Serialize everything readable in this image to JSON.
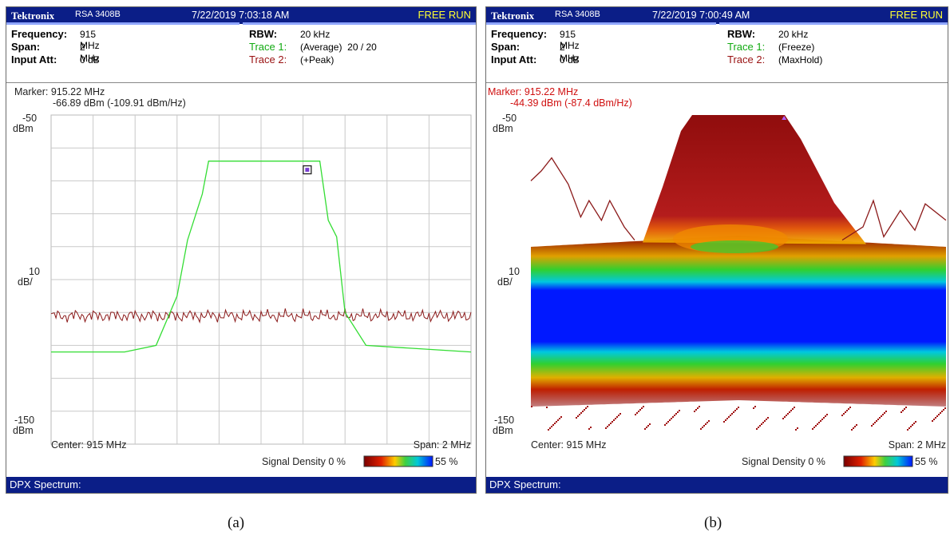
{
  "colors": {
    "titlebar_bg": "#0b1e87",
    "free_run": "#ffff33",
    "trace1_green": "#33dd33",
    "trace2_maroon": "#8b1a1a",
    "grid": "#c8c8c8",
    "dpx_blue": "#0018ff",
    "dpx_red": "#b01010"
  },
  "panels": [
    {
      "brand": "Tektronix",
      "model": "RSA 3408B",
      "datetime": "7/22/2019 7:03:18 AM",
      "run_mode": "FREE RUN",
      "frequency_label": "Frequency:",
      "frequency_value": "915 MHz",
      "span_label": "Span:",
      "span_value": "2 MHz",
      "input_att_label": "Input Att:",
      "input_att_value": "0 dB",
      "rbw_label": "RBW:",
      "rbw_value": "20 kHz",
      "trace1_label": "Trace 1:",
      "trace1_value": "(Average)  20 / 20",
      "trace2_label": "Trace 2:",
      "trace2_value": "(+Peak)",
      "marker_line1": "Marker: 915.22 MHz",
      "marker_line2": "-66.89 dBm (-109.91 dBm/Hz)",
      "y_top": "-50",
      "y_top_unit": "dBm",
      "y_mid": "10",
      "y_mid_unit": "dB/",
      "y_bottom": "-150",
      "y_bottom_unit": "dBm",
      "center_label": "Center: 915 MHz",
      "span_footer": "Span: 2 MHz",
      "density_label": "Signal Density  0 %",
      "density_max": "55 %",
      "footer": "DPX Spectrum:",
      "caption": "(a)"
    },
    {
      "brand": "Tektronix",
      "model": "RSA 3408B",
      "datetime": "7/22/2019 7:00:49 AM",
      "run_mode": "FREE RUN",
      "frequency_label": "Frequency:",
      "frequency_value": "915 MHz",
      "span_label": "Span:",
      "span_value": "2 MHz",
      "input_att_label": "Input Att:",
      "input_att_value": "0 dB",
      "rbw_label": "RBW:",
      "rbw_value": "20 kHz",
      "trace1_label": "Trace 1:",
      "trace1_value": "(Freeze)",
      "trace2_label": "Trace 2:",
      "trace2_value": "(MaxHold)",
      "marker_line1": "Marker: 915.22 MHz",
      "marker_line2": "-44.39 dBm (-87.4 dBm/Hz)",
      "y_top": "-50",
      "y_top_unit": "dBm",
      "y_mid": "10",
      "y_mid_unit": "dB/",
      "y_bottom": "-150",
      "y_bottom_unit": "dBm",
      "center_label": "Center: 915 MHz",
      "span_footer": "Span: 2 MHz",
      "density_label": "Signal Density  0 %",
      "density_max": "55 %",
      "footer": "DPX Spectrum:",
      "caption": "(b)"
    }
  ],
  "chart_data": [
    {
      "type": "line",
      "xlim": [
        914,
        916
      ],
      "ylim": [
        -150,
        -50
      ],
      "grid": true,
      "series": [
        {
          "trace": "Trace 1",
          "color": "#33dd33",
          "x": [
            914.0,
            914.35,
            914.5,
            914.6,
            914.65,
            914.72,
            914.75,
            915.0,
            915.25,
            915.28,
            915.32,
            915.36,
            915.4,
            915.5,
            916.0
          ],
          "y": [
            -122,
            -122,
            -120,
            -105,
            -88,
            -74,
            -64,
            -64,
            -64,
            -64,
            -82,
            -87,
            -110,
            -120,
            -122
          ]
        },
        {
          "trace": "Trace 2",
          "color": "#8b1a1a",
          "x": [
            914.0,
            916.0
          ],
          "y": [
            -111,
            -111
          ]
        }
      ],
      "marker": {
        "x": 915.22,
        "y": -66.89
      }
    },
    {
      "type": "heatmap",
      "xlim": [
        914,
        916
      ],
      "ylim": [
        -150,
        -50
      ],
      "grid": false,
      "density_range_percent": [
        0,
        55
      ],
      "maxhold_trace": {
        "trace": "Trace 2",
        "color": "#8b1a1a",
        "x": [
          914.0,
          914.05,
          914.1,
          914.18,
          914.24,
          914.28,
          914.34,
          914.38,
          914.45,
          914.5,
          915.5,
          915.6,
          915.65,
          915.7,
          915.78,
          915.85,
          915.9,
          916.0
        ],
        "y": [
          -70,
          -67,
          -63,
          -71,
          -81,
          -76,
          -82,
          -76,
          -84,
          -88,
          -88,
          -84,
          -76,
          -87,
          -79,
          -85,
          -77,
          -82
        ]
      },
      "marker": {
        "x": 915.22,
        "y": -44.39
      }
    }
  ]
}
